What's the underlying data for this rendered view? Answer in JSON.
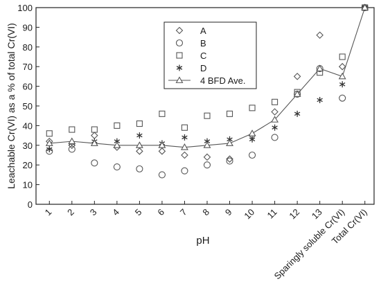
{
  "chart_data": {
    "type": "scatter",
    "xlabel": "pH",
    "ylabel": "Leachable Cr(VI) as a % of total Cr(VI)",
    "categories": [
      "1",
      "2",
      "3",
      "4",
      "5",
      "6",
      "7",
      "8",
      "9",
      "10",
      "11",
      "12",
      "13",
      "Sparingly soluble Cr(VI)",
      "Total Cr(VI)"
    ],
    "ylim": [
      0,
      100
    ],
    "yticks": [
      "0",
      "10",
      "20",
      "30",
      "40",
      "50",
      "60",
      "70",
      "80",
      "90",
      "100"
    ],
    "grid": false,
    "legend_position": "top-center",
    "series": [
      {
        "name": "A",
        "marker": "diamond",
        "line": false,
        "color": "#555555",
        "values": [
          32,
          30,
          35,
          29,
          27,
          27,
          25,
          24,
          23,
          35,
          47,
          65,
          86,
          70,
          100
        ]
      },
      {
        "name": "B",
        "marker": "circle",
        "line": false,
        "color": "#555555",
        "values": [
          27,
          28,
          21,
          19,
          18,
          15,
          17,
          20,
          22,
          25,
          34,
          56,
          69,
          54,
          100
        ]
      },
      {
        "name": "C",
        "marker": "square",
        "line": false,
        "color": "#555555",
        "values": [
          36,
          38,
          38,
          40,
          41,
          46,
          39,
          45,
          46,
          49,
          52,
          57,
          67,
          75,
          100
        ]
      },
      {
        "name": "D",
        "marker": "asterisk",
        "line": false,
        "color": "#333333",
        "values": [
          28,
          31,
          32,
          32,
          35,
          31,
          34,
          32,
          33,
          33,
          39,
          46,
          53,
          61,
          100
        ]
      },
      {
        "name": "4 BFD Ave.",
        "marker": "triangle",
        "line": true,
        "color": "#555555",
        "values": [
          31,
          32,
          31,
          30,
          30,
          30,
          29,
          30,
          31,
          36,
          43,
          56,
          69,
          65,
          100
        ]
      }
    ]
  }
}
